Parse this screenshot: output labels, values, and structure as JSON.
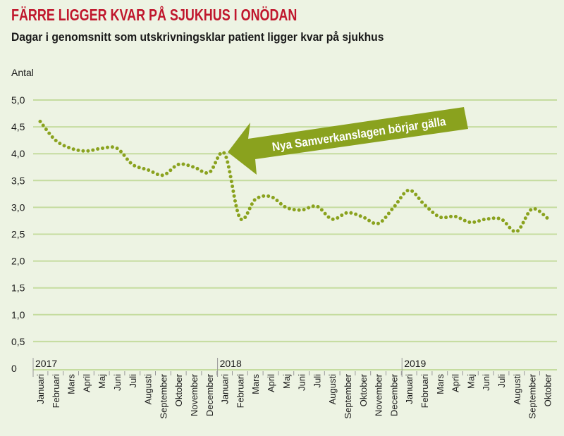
{
  "title": "FÄRRE LIGGER KVAR PÅ SJUKHUS I ONÖDAN",
  "subtitle": "Dagar i genomsnitt som utskrivningsklar patient ligger kvar på sjukhus",
  "colors": {
    "title": "#c0172d",
    "line": "#8aa21e",
    "grid": "#c5dc9f",
    "background": "#edf3e3"
  },
  "chart_data": {
    "type": "line",
    "title": "FÄRRE LIGGER KVAR PÅ SJUKHUS I ONÖDAN",
    "subtitle": "Dagar i genomsnitt som utskrivningsklar patient ligger kvar på sjukhus",
    "ylabel": "Antal",
    "xlabel": "",
    "ylim": [
      0,
      5
    ],
    "yticks": [
      "0",
      "0,5",
      "1,0",
      "1,5",
      "2,0",
      "2,5",
      "3,0",
      "3,5",
      "4,0",
      "4,5",
      "5,0"
    ],
    "grid": true,
    "years": [
      {
        "label": "2017",
        "start_index": 0
      },
      {
        "label": "2018",
        "start_index": 12
      },
      {
        "label": "2019",
        "start_index": 24
      }
    ],
    "categories": [
      "Januari",
      "Februari",
      "Mars",
      "April",
      "Maj",
      "Juni",
      "Juli",
      "Augusti",
      "September",
      "Oktober",
      "November",
      "December",
      "Januari",
      "Februari",
      "Mars",
      "April",
      "Maj",
      "Juni",
      "Juli",
      "Augusti",
      "September",
      "Oktober",
      "November",
      "December",
      "Januari",
      "Februari",
      "Mars",
      "April",
      "Maj",
      "Juni",
      "Juli",
      "Augusti",
      "September",
      "Oktober"
    ],
    "series": [
      {
        "name": "Dagar",
        "values": [
          4.6,
          4.25,
          4.1,
          4.05,
          4.1,
          4.1,
          3.8,
          3.7,
          3.6,
          3.8,
          3.75,
          3.65,
          4.0,
          2.8,
          3.15,
          3.2,
          3.0,
          2.95,
          3.02,
          2.78,
          2.9,
          2.82,
          2.7,
          3.0,
          3.32,
          3.05,
          2.82,
          2.83,
          2.72,
          2.78,
          2.78,
          2.55,
          2.97,
          2.8
        ]
      }
    ],
    "annotation": {
      "text": "Nya Samverkanslagen börjar gälla",
      "points_to_index": 12
    }
  }
}
